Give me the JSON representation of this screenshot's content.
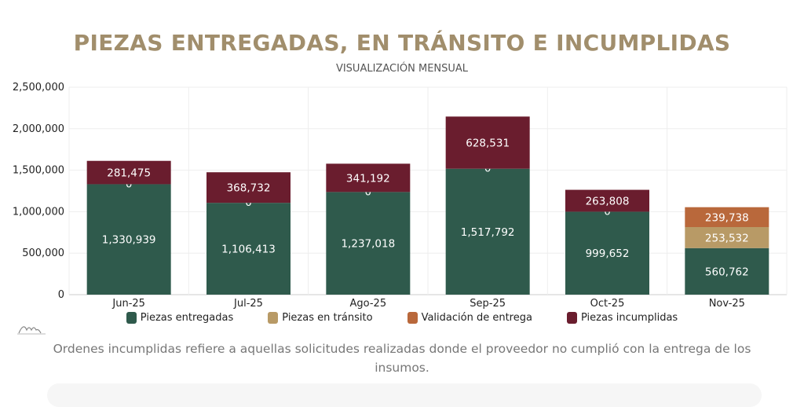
{
  "title": "PIEZAS ENTREGADAS, EN TRÁNSITO E INCUMPLIDAS",
  "subtitle": "VISUALIZACIÓN MENSUAL",
  "note": "Ordenes incumplidas refiere a aquellas solicitudes realizadas donde el proveedor no cumplió con la entrega de los insumos.",
  "chart_data": {
    "type": "bar",
    "stacked": true,
    "categories": [
      "Jun-25",
      "Jul-25",
      "Ago-25",
      "Sep-25",
      "Oct-25",
      "Nov-25"
    ],
    "ylim": [
      0,
      2500000
    ],
    "yticks": [
      0,
      500000,
      1000000,
      1500000,
      2000000,
      2500000
    ],
    "ytick_labels": [
      "0",
      "500,000",
      "1,000,000",
      "1,500,000",
      "2,000,000",
      "2,500,000"
    ],
    "grid": true,
    "legend_position": "bottom",
    "series": [
      {
        "name": "Piezas entregadas",
        "color": "#2f5a4c",
        "values": [
          1330939,
          1106413,
          1237018,
          1517792,
          999652,
          560762
        ],
        "labels": [
          "1,330,939",
          "1,106,413",
          "1,237,018",
          "1,517,792",
          "999,652",
          "560,762"
        ]
      },
      {
        "name": "Piezas en tránsito",
        "color": "#b89a66",
        "values": [
          0,
          0,
          0,
          0,
          0,
          253532
        ],
        "labels": [
          "0",
          "0",
          "0",
          "0",
          "0",
          "253,532"
        ]
      },
      {
        "name": "Validación de entrega",
        "color": "#b9683b",
        "values": [
          0,
          0,
          0,
          0,
          0,
          239738
        ],
        "labels": [
          "",
          "",
          "",
          "",
          "",
          "239,738"
        ]
      },
      {
        "name": "Piezas incumplidas",
        "color": "#6a1d2e",
        "values": [
          281475,
          368732,
          341192,
          628531,
          263808,
          0
        ],
        "labels": [
          "281,475",
          "368,732",
          "341,192",
          "628,531",
          "263,808",
          ""
        ]
      }
    ]
  }
}
